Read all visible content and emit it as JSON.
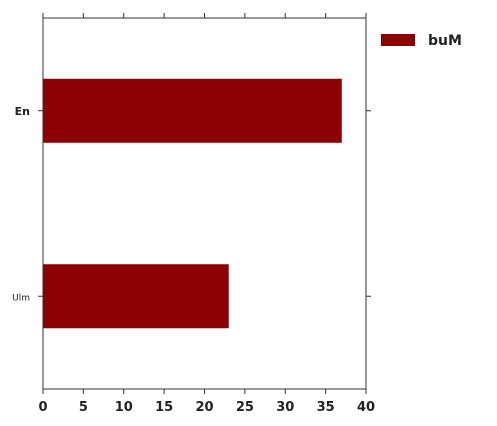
{
  "chart_data": {
    "type": "bar",
    "orientation": "horizontal",
    "categories": [
      "En",
      "Ulm"
    ],
    "series": [
      {
        "name": "buM",
        "values": [
          37,
          23
        ],
        "color": "#8b0000"
      }
    ],
    "xlim": [
      0,
      40
    ],
    "xticks": [
      "0",
      "5",
      "10",
      "15",
      "20",
      "25",
      "30",
      "35",
      "40"
    ],
    "xlabel": "",
    "ylabel": "",
    "title": "",
    "grid": false,
    "legend_position": "outside-right-top"
  }
}
